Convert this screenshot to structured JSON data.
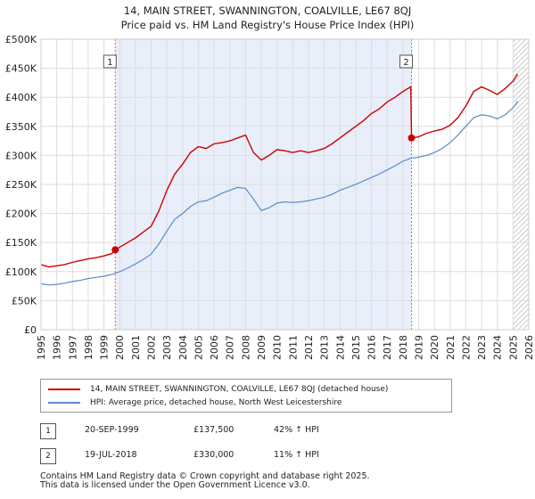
{
  "title": {
    "line1": "14, MAIN STREET, SWANNINGTON, COALVILLE, LE67 8QJ",
    "line2": "Price paid vs. HM Land Registry's House Price Index (HPI)"
  },
  "colors": {
    "price_line": "#cc0000",
    "hpi_line": "#5b8cc8",
    "shade": "#e8eefa",
    "grid": "#dddddd",
    "marker_vline": "#e06060"
  },
  "chart_data": {
    "type": "line",
    "title": "Price paid vs. HM Land Registry's House Price Index (HPI)",
    "xlabel": "",
    "ylabel": "",
    "xlim": [
      1995,
      2026
    ],
    "ylim": [
      0,
      500000
    ],
    "yticks": [
      0,
      50000,
      100000,
      150000,
      200000,
      250000,
      300000,
      350000,
      400000,
      450000,
      500000
    ],
    "ytick_labels": [
      "£0",
      "£50K",
      "£100K",
      "£150K",
      "£200K",
      "£250K",
      "£300K",
      "£350K",
      "£400K",
      "£450K",
      "£500K"
    ],
    "xticks": [
      1995,
      1996,
      1997,
      1998,
      1999,
      2000,
      2001,
      2002,
      2003,
      2004,
      2005,
      2006,
      2007,
      2008,
      2009,
      2010,
      2011,
      2012,
      2013,
      2014,
      2015,
      2016,
      2017,
      2018,
      2019,
      2020,
      2021,
      2022,
      2023,
      2024,
      2025,
      2026
    ],
    "xtick_labels": [
      "1995",
      "1996",
      "1997",
      "1998",
      "1999",
      "2000",
      "2001",
      "2002",
      "2003",
      "2004",
      "2005",
      "2006",
      "2007",
      "2008",
      "2009",
      "2010",
      "2011",
      "2012",
      "2013",
      "2014",
      "2015",
      "2016",
      "2017",
      "2018",
      "2019",
      "2020",
      "2021",
      "2022",
      "2023",
      "2024",
      "2025",
      "2026"
    ],
    "grid": true,
    "shaded_period": [
      1999.72,
      2018.55
    ],
    "hatched_from": 2025.0,
    "series": [
      {
        "name": "14, MAIN STREET, SWANNINGTON, COALVILLE, LE67 8QJ (detached house)",
        "x": [
          1995.0,
          1995.5,
          1996.0,
          1996.5,
          1997.0,
          1997.5,
          1998.0,
          1998.5,
          1999.0,
          1999.5,
          1999.72,
          2000.0,
          2000.5,
          2001.0,
          2001.5,
          2002.0,
          2002.5,
          2003.0,
          2003.5,
          2004.0,
          2004.5,
          2005.0,
          2005.5,
          2006.0,
          2006.5,
          2007.0,
          2007.5,
          2008.0,
          2008.5,
          2009.0,
          2009.5,
          2010.0,
          2010.5,
          2011.0,
          2011.5,
          2012.0,
          2012.5,
          2013.0,
          2013.5,
          2014.0,
          2014.5,
          2015.0,
          2015.5,
          2016.0,
          2016.5,
          2017.0,
          2017.5,
          2018.0,
          2018.5,
          2018.55,
          2019.0,
          2019.5,
          2020.0,
          2020.5,
          2021.0,
          2021.5,
          2022.0,
          2022.5,
          2023.0,
          2023.5,
          2024.0,
          2024.5,
          2025.0,
          2025.3
        ],
        "values": [
          112000,
          108000,
          110000,
          112000,
          116000,
          119000,
          122000,
          124000,
          127000,
          131000,
          137500,
          142000,
          150000,
          158000,
          168000,
          178000,
          205000,
          240000,
          268000,
          285000,
          305000,
          315000,
          312000,
          320000,
          322000,
          325000,
          330000,
          335000,
          305000,
          292000,
          300000,
          310000,
          308000,
          305000,
          308000,
          305000,
          308000,
          312000,
          320000,
          330000,
          340000,
          350000,
          360000,
          372000,
          380000,
          392000,
          400000,
          410000,
          418000,
          330000,
          332000,
          338000,
          342000,
          345000,
          352000,
          365000,
          385000,
          410000,
          418000,
          412000,
          405000,
          415000,
          428000,
          440000
        ]
      },
      {
        "name": "HPI: Average price, detached house, North West Leicestershire",
        "x": [
          1995.0,
          1995.5,
          1996.0,
          1996.5,
          1997.0,
          1997.5,
          1998.0,
          1998.5,
          1999.0,
          1999.5,
          2000.0,
          2000.5,
          2001.0,
          2001.5,
          2002.0,
          2002.5,
          2003.0,
          2003.5,
          2004.0,
          2004.5,
          2005.0,
          2005.5,
          2006.0,
          2006.5,
          2007.0,
          2007.5,
          2008.0,
          2008.5,
          2009.0,
          2009.5,
          2010.0,
          2010.5,
          2011.0,
          2011.5,
          2012.0,
          2012.5,
          2013.0,
          2013.5,
          2014.0,
          2014.5,
          2015.0,
          2015.5,
          2016.0,
          2016.5,
          2017.0,
          2017.5,
          2018.0,
          2018.5,
          2019.0,
          2019.5,
          2020.0,
          2020.5,
          2021.0,
          2021.5,
          2022.0,
          2022.5,
          2023.0,
          2023.5,
          2024.0,
          2024.5,
          2025.0,
          2025.3
        ],
        "values": [
          79000,
          77000,
          78000,
          80000,
          83000,
          85000,
          88000,
          90000,
          92000,
          95000,
          100000,
          106000,
          113000,
          121000,
          130000,
          148000,
          170000,
          190000,
          200000,
          212000,
          220000,
          222000,
          228000,
          235000,
          240000,
          245000,
          243000,
          225000,
          205000,
          210000,
          218000,
          220000,
          219000,
          220000,
          222000,
          225000,
          228000,
          233000,
          240000,
          245000,
          250000,
          256000,
          262000,
          268000,
          275000,
          282000,
          290000,
          295000,
          297000,
          300000,
          305000,
          312000,
          322000,
          335000,
          350000,
          365000,
          370000,
          368000,
          363000,
          370000,
          382000,
          393000
        ]
      }
    ],
    "annotations": [
      {
        "label": "1",
        "x": 1999.72,
        "value": 137500
      },
      {
        "label": "2",
        "x": 2018.55,
        "value": 330000
      }
    ]
  },
  "legend": {
    "entries": [
      "14, MAIN STREET, SWANNINGTON, COALVILLE, LE67 8QJ (detached house)",
      "HPI: Average price, detached house, North West Leicestershire"
    ]
  },
  "sales": [
    {
      "id": "1",
      "date": "20-SEP-1999",
      "price": "£137,500",
      "hpi": "42% ↑ HPI"
    },
    {
      "id": "2",
      "date": "19-JUL-2018",
      "price": "£330,000",
      "hpi": "11% ↑ HPI"
    }
  ],
  "footer": {
    "line1": "Contains HM Land Registry data © Crown copyright and database right 2025.",
    "line2": "This data is licensed under the Open Government Licence v3.0."
  }
}
